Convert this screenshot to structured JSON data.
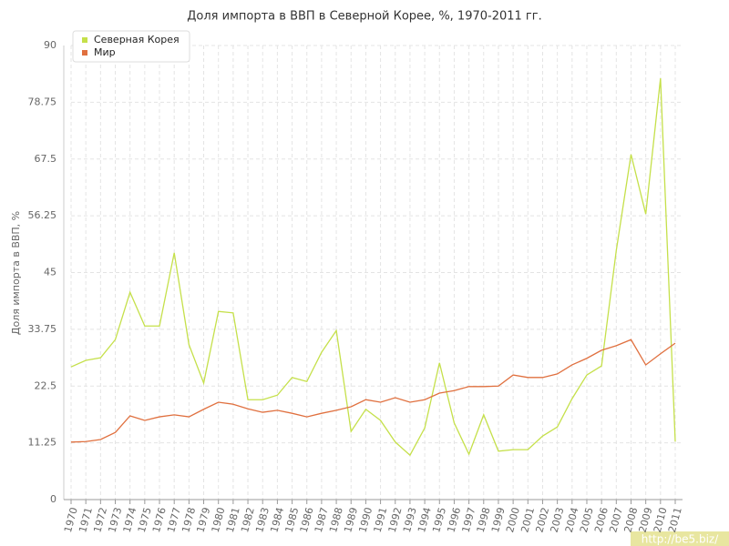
{
  "chart_data": {
    "type": "line",
    "title": "Доля импорта в ВВП в Северной Корее, %, 1970-2011 гг.",
    "y_label": "Доля импорта в ВВП, %",
    "x": [
      1970,
      1971,
      1972,
      1973,
      1974,
      1975,
      1976,
      1977,
      1978,
      1979,
      1980,
      1981,
      1982,
      1983,
      1984,
      1985,
      1986,
      1987,
      1988,
      1989,
      1990,
      1991,
      1992,
      1993,
      1994,
      1995,
      1996,
      1997,
      1998,
      1999,
      2000,
      2001,
      2002,
      2003,
      2004,
      2005,
      2006,
      2007,
      2008,
      2009,
      2010,
      2011
    ],
    "xlim": [
      1970,
      2011
    ],
    "xticks": [
      1970,
      1971,
      1972,
      1973,
      1974,
      1975,
      1976,
      1977,
      1978,
      1979,
      1980,
      1981,
      1982,
      1983,
      1984,
      1985,
      1986,
      1987,
      1988,
      1989,
      1990,
      1991,
      1992,
      1993,
      1994,
      1995,
      1996,
      1997,
      1998,
      1999,
      2000,
      2001,
      2002,
      2003,
      2004,
      2005,
      2006,
      2007,
      2008,
      2009,
      2010,
      2011
    ],
    "ylim": [
      0,
      90
    ],
    "yticks": [
      0,
      11.25,
      22.5,
      33.75,
      45,
      56.25,
      67.5,
      78.75,
      90
    ],
    "grid": true,
    "legend": "top-left",
    "series": [
      {
        "name": "Северная Корея",
        "color": "#c5e04a",
        "values": [
          26.3,
          27.6,
          28.1,
          31.7,
          41.1,
          34.4,
          34.4,
          48.9,
          30.7,
          23.1,
          37.3,
          37.0,
          19.8,
          19.8,
          20.7,
          24.2,
          23.4,
          29.2,
          33.5,
          13.5,
          17.9,
          15.7,
          11.4,
          8.8,
          14.2,
          27.1,
          15.2,
          9.0,
          16.8,
          9.6,
          9.9,
          9.9,
          12.6,
          14.4,
          20.0,
          24.7,
          26.5,
          49.4,
          68.4,
          56.6,
          83.5,
          11.5
        ]
      },
      {
        "name": "Мир",
        "color": "#e0703f",
        "values": [
          11.4,
          11.5,
          11.9,
          13.3,
          16.6,
          15.7,
          16.4,
          16.8,
          16.4,
          17.9,
          19.3,
          18.9,
          18.0,
          17.3,
          17.7,
          17.1,
          16.4,
          17.1,
          17.7,
          18.4,
          19.8,
          19.3,
          20.2,
          19.3,
          19.8,
          21.1,
          21.6,
          22.4,
          22.4,
          22.5,
          24.7,
          24.2,
          24.2,
          24.9,
          26.7,
          28.0,
          29.6,
          30.5,
          31.7,
          26.7,
          28.9,
          31.0
        ]
      }
    ],
    "watermark": "http://be5.biz/"
  }
}
